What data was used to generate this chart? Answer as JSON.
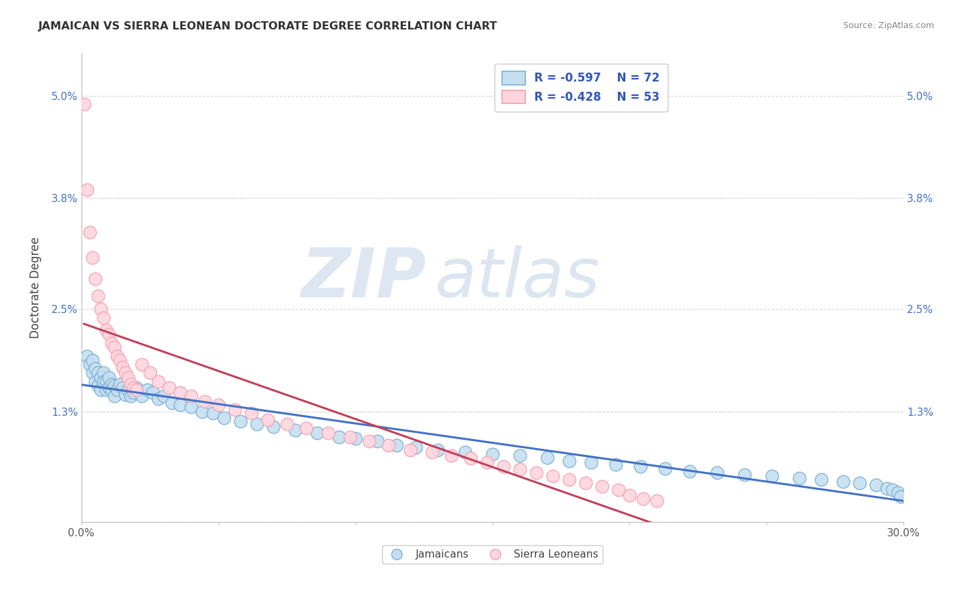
{
  "title": "JAMAICAN VS SIERRA LEONEAN DOCTORATE DEGREE CORRELATION CHART",
  "source": "Source: ZipAtlas.com",
  "ylabel": "Doctorate Degree",
  "xlabel": "",
  "xlim": [
    0.0,
    0.3
  ],
  "ylim": [
    0.0,
    0.055
  ],
  "xticks": [
    0.0,
    0.05,
    0.1,
    0.15,
    0.2,
    0.25,
    0.3
  ],
  "xticklabels": [
    "0.0%",
    "",
    "",
    "",
    "",
    "",
    "30.0%"
  ],
  "yticks": [
    0.0,
    0.013,
    0.025,
    0.038,
    0.05
  ],
  "yticklabels": [
    "",
    "1.3%",
    "2.5%",
    "3.8%",
    "5.0%"
  ],
  "grid_color": "#cccccc",
  "background_color": "#ffffff",
  "watermark_zip": "ZIP",
  "watermark_atlas": "atlas",
  "legend_r1": "R = -0.597",
  "legend_n1": "N = 72",
  "legend_r2": "R = -0.428",
  "legend_n2": "N = 53",
  "blue_color": "#7bafd4",
  "pink_color": "#f4a0b0",
  "blue_fill": "#c5dff0",
  "pink_fill": "#fdd5de",
  "line_blue": "#4472c4",
  "line_pink": "#c0415a",
  "jamaicans_x": [
    0.002,
    0.003,
    0.004,
    0.004,
    0.005,
    0.005,
    0.006,
    0.006,
    0.007,
    0.007,
    0.008,
    0.008,
    0.009,
    0.009,
    0.01,
    0.01,
    0.011,
    0.011,
    0.012,
    0.012,
    0.013,
    0.014,
    0.015,
    0.016,
    0.017,
    0.018,
    0.019,
    0.02,
    0.022,
    0.024,
    0.026,
    0.028,
    0.03,
    0.033,
    0.036,
    0.04,
    0.044,
    0.048,
    0.052,
    0.058,
    0.064,
    0.07,
    0.078,
    0.086,
    0.094,
    0.1,
    0.108,
    0.115,
    0.122,
    0.13,
    0.14,
    0.15,
    0.16,
    0.17,
    0.178,
    0.186,
    0.195,
    0.204,
    0.213,
    0.222,
    0.232,
    0.242,
    0.252,
    0.262,
    0.27,
    0.278,
    0.284,
    0.29,
    0.294,
    0.296,
    0.298,
    0.299
  ],
  "jamaicans_y": [
    0.0195,
    0.0185,
    0.019,
    0.0175,
    0.018,
    0.0165,
    0.0175,
    0.016,
    0.017,
    0.0155,
    0.0175,
    0.0165,
    0.0165,
    0.0155,
    0.017,
    0.0158,
    0.0162,
    0.0155,
    0.016,
    0.0148,
    0.0155,
    0.0162,
    0.0158,
    0.015,
    0.0155,
    0.0148,
    0.0152,
    0.0158,
    0.0148,
    0.0155,
    0.0152,
    0.0145,
    0.0148,
    0.014,
    0.0138,
    0.0135,
    0.013,
    0.0128,
    0.0122,
    0.0118,
    0.0115,
    0.0112,
    0.0108,
    0.0105,
    0.01,
    0.0098,
    0.0095,
    0.009,
    0.0088,
    0.0085,
    0.0082,
    0.008,
    0.0078,
    0.0076,
    0.0072,
    0.007,
    0.0068,
    0.0065,
    0.0063,
    0.006,
    0.0058,
    0.0056,
    0.0054,
    0.0052,
    0.005,
    0.0048,
    0.0046,
    0.0044,
    0.004,
    0.0038,
    0.0035,
    0.003
  ],
  "sierraleoneans_x": [
    0.001,
    0.002,
    0.003,
    0.004,
    0.005,
    0.006,
    0.007,
    0.008,
    0.009,
    0.01,
    0.011,
    0.012,
    0.013,
    0.014,
    0.015,
    0.016,
    0.017,
    0.018,
    0.019,
    0.02,
    0.022,
    0.025,
    0.028,
    0.032,
    0.036,
    0.04,
    0.045,
    0.05,
    0.056,
    0.062,
    0.068,
    0.075,
    0.082,
    0.09,
    0.098,
    0.105,
    0.112,
    0.12,
    0.128,
    0.135,
    0.142,
    0.148,
    0.154,
    0.16,
    0.166,
    0.172,
    0.178,
    0.184,
    0.19,
    0.196,
    0.2,
    0.205,
    0.21
  ],
  "sierraleoneans_y": [
    0.049,
    0.039,
    0.034,
    0.031,
    0.0285,
    0.0265,
    0.025,
    0.024,
    0.0225,
    0.022,
    0.021,
    0.0205,
    0.0195,
    0.019,
    0.0182,
    0.0175,
    0.017,
    0.0162,
    0.0158,
    0.0155,
    0.0185,
    0.0175,
    0.0165,
    0.0158,
    0.0152,
    0.0148,
    0.0142,
    0.0138,
    0.0132,
    0.0128,
    0.012,
    0.0115,
    0.011,
    0.0105,
    0.01,
    0.0095,
    0.009,
    0.0085,
    0.0082,
    0.0078,
    0.0075,
    0.007,
    0.0065,
    0.0062,
    0.0058,
    0.0054,
    0.005,
    0.0046,
    0.0042,
    0.0038,
    0.0032,
    0.0028,
    0.0025
  ]
}
